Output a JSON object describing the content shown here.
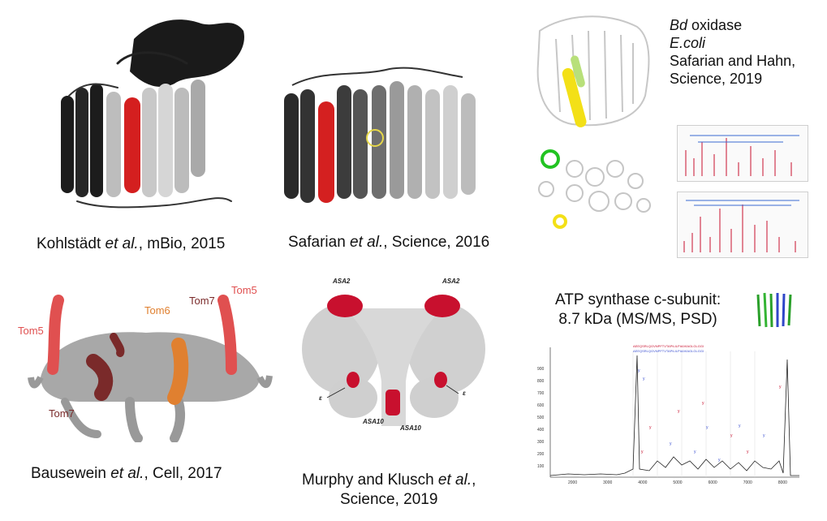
{
  "panels": {
    "p1": {
      "caption_pre": "Kohlstädt ",
      "caption_it": "et al.",
      "caption_post": ", mBio, 2015"
    },
    "p2": {
      "caption_pre": "Safarian ",
      "caption_it": "et al.",
      "caption_post": ", Science, 2016"
    },
    "p3": {
      "line1_it": "Bd",
      "line1_post": " oxidase",
      "line2_it": "E.coli",
      "line3": "Safarian and Hahn,",
      "line4": "Science, 2019"
    },
    "p4": {
      "caption_pre": "Bausewein ",
      "caption_it": "et al.",
      "caption_post": ", Cell, 2017",
      "labels": {
        "tom5_left": "Tom5",
        "tom5_right": "Tom5",
        "tom6": "Tom6",
        "tom7_top": "Tom7",
        "tom7_bottom": "Tom7"
      },
      "colors": {
        "tom5": "#e05050",
        "tom6": "#e08030",
        "tom7": "#7a2a2a",
        "body": "#a8a8a8"
      }
    },
    "p5": {
      "caption_line1_pre": "Murphy and Klusch ",
      "caption_line1_it": "et al.",
      "caption_line1_post": ",",
      "caption_line2": "Science, 2019",
      "labels": {
        "asa2_left": "ASA2",
        "asa2_right": "ASA2",
        "asa10_left": "ASA10",
        "asa10_right": "ASA10",
        "e_left": "ε",
        "e_right": "ε"
      },
      "colors": {
        "highlight": "#c8102e",
        "body": "#d0d0d0"
      }
    },
    "p6": {
      "title_line1": "ATP synthase c-subunit:",
      "title_line2": "8.7 kDa (MS/MS, PSD)",
      "spectrum": {
        "y_ticks": [
          "900",
          "800",
          "700",
          "600",
          "500",
          "400",
          "300",
          "200",
          "100"
        ],
        "x_ticks": [
          "2000",
          "3000",
          "4000",
          "5000",
          "6000",
          "7000",
          "8000"
        ]
      }
    }
  }
}
